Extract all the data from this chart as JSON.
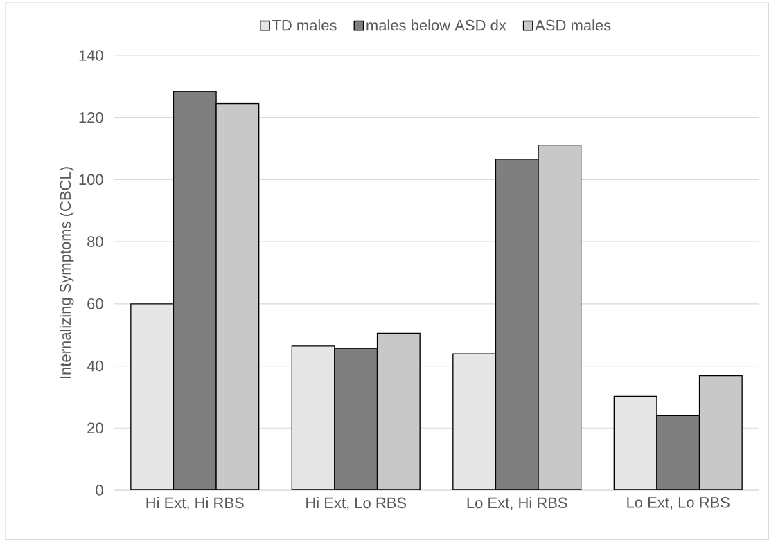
{
  "chart_data": {
    "type": "bar",
    "ylabel": "Internalizing Symptoms (CBCL)",
    "categories": [
      "Hi Ext, Hi RBS",
      "Hi Ext, Lo RBS",
      "Lo Ext, Hi RBS",
      "Lo Ext, Lo RBS"
    ],
    "series": [
      {
        "name": "TD males",
        "color": "#e6e6e6",
        "values": [
          60.0,
          46.4,
          43.9,
          30.2
        ]
      },
      {
        "name": "males below ASD dx",
        "color": "#7f7f7f",
        "values": [
          128.4,
          45.7,
          106.6,
          24.0
        ]
      },
      {
        "name": "ASD males",
        "color": "#c8c8c8",
        "values": [
          124.5,
          50.5,
          111.1,
          36.9
        ]
      }
    ],
    "ylim": [
      0,
      140
    ],
    "yticks": [
      0,
      20,
      40,
      60,
      80,
      100,
      120,
      140
    ],
    "grid": "y",
    "legend": "top"
  }
}
